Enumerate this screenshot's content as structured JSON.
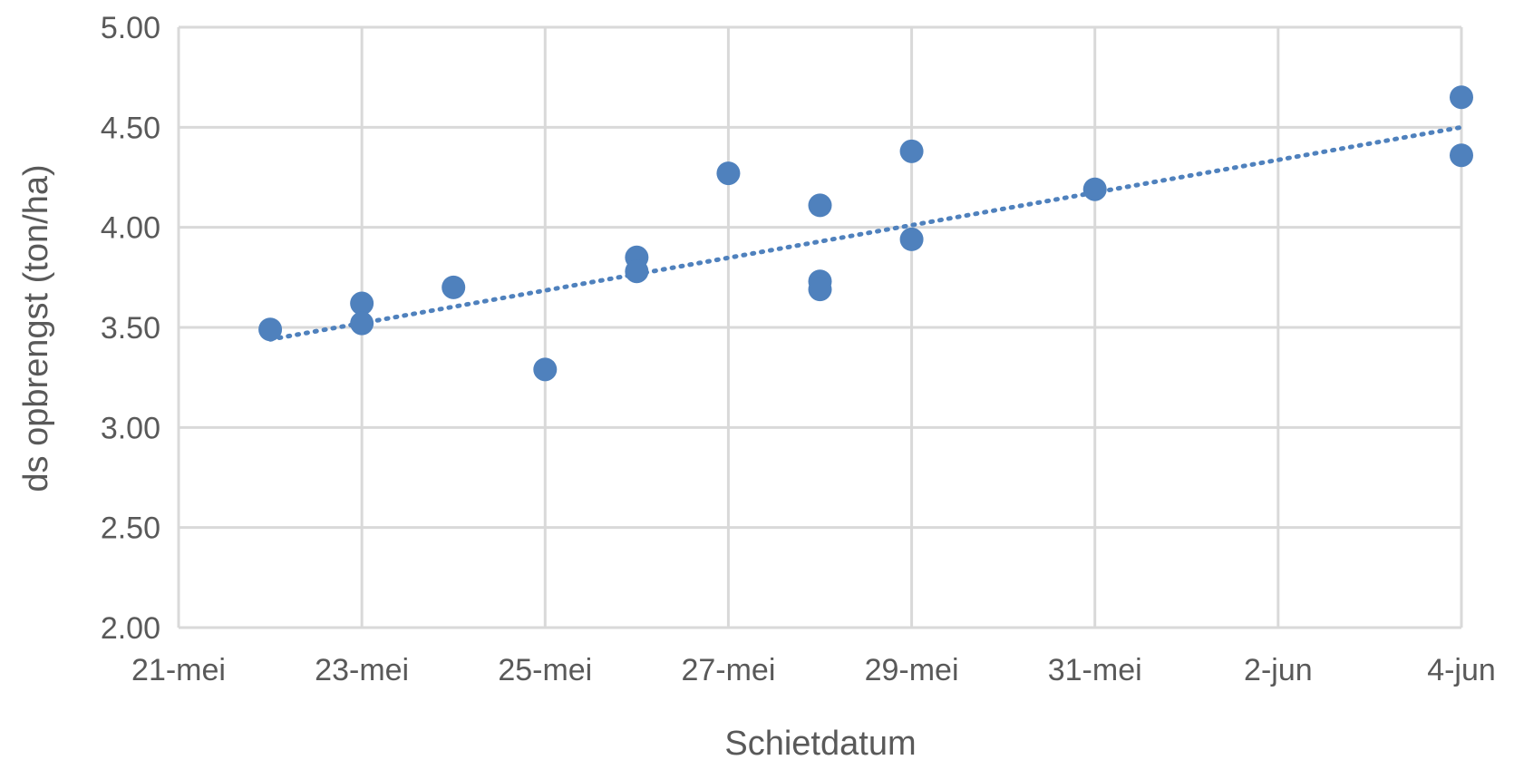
{
  "chart_data": {
    "type": "scatter",
    "xlabel": "Schietdatum",
    "ylabel": "ds opbrengst (ton/ha)",
    "x_tick_labels": [
      "21-mei",
      "23-mei",
      "25-mei",
      "27-mei",
      "29-mei",
      "31-mei",
      "2-jun",
      "4-jun"
    ],
    "y_tick_labels": [
      "2.00",
      "2.50",
      "3.00",
      "3.50",
      "4.00",
      "4.50",
      "5.00"
    ],
    "xlim": [
      "21-mei",
      "4-jun"
    ],
    "ylim": [
      2.0,
      5.0
    ],
    "grid": true,
    "legend": "none",
    "series_color": "#4f81bd",
    "points": [
      {
        "x": "22-mei",
        "y": 3.49
      },
      {
        "x": "23-mei",
        "y": 3.62
      },
      {
        "x": "23-mei",
        "y": 3.52
      },
      {
        "x": "24-mei",
        "y": 3.7
      },
      {
        "x": "25-mei",
        "y": 3.29
      },
      {
        "x": "26-mei",
        "y": 3.85
      },
      {
        "x": "26-mei",
        "y": 3.78
      },
      {
        "x": "27-mei",
        "y": 4.27
      },
      {
        "x": "28-mei",
        "y": 4.11
      },
      {
        "x": "28-mei",
        "y": 3.73
      },
      {
        "x": "28-mei",
        "y": 3.69
      },
      {
        "x": "29-mei",
        "y": 4.38
      },
      {
        "x": "29-mei",
        "y": 3.94
      },
      {
        "x": "31-mei",
        "y": 4.19
      },
      {
        "x": "4-jun",
        "y": 4.65
      },
      {
        "x": "4-jun",
        "y": 4.36
      }
    ],
    "trendline": {
      "type": "linear",
      "style": "dotted",
      "x_start": "22-mei",
      "y_start": 3.44,
      "x_end": "4-jun",
      "y_end": 4.5
    }
  }
}
